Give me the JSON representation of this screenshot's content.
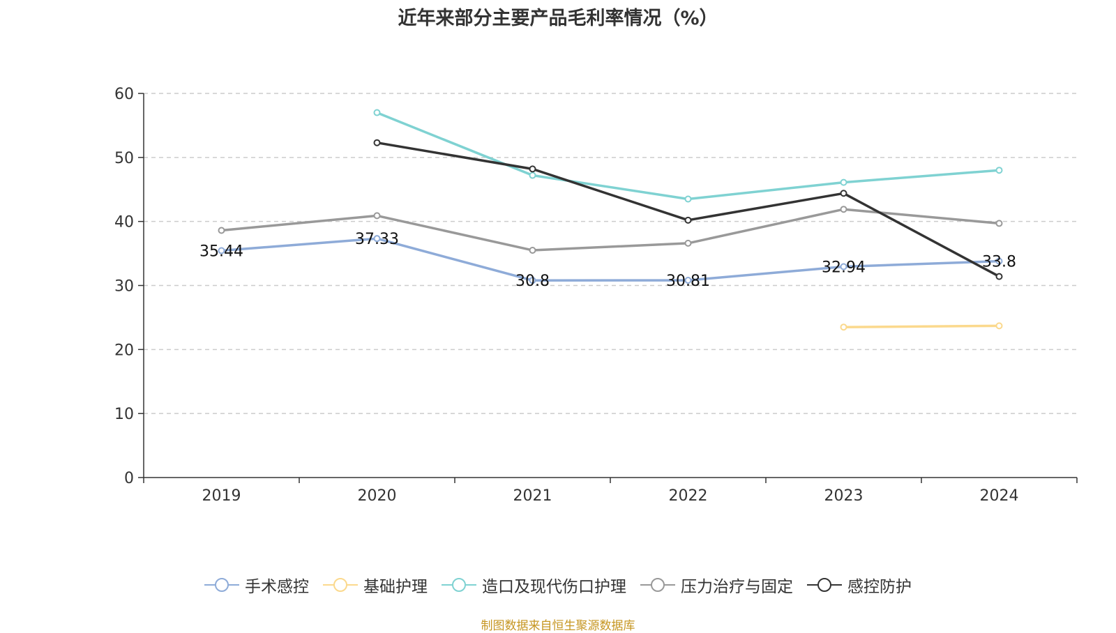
{
  "chart_data": {
    "type": "line",
    "title": "近年来部分主要产品毛利率情况（%）",
    "categories": [
      "2019",
      "2020",
      "2021",
      "2022",
      "2023",
      "2024"
    ],
    "ylim": [
      0,
      60
    ],
    "yticks": [
      0,
      10,
      20,
      30,
      40,
      50,
      60
    ],
    "grid": true,
    "legend_position": "bottom",
    "series": [
      {
        "name": "手术感控",
        "color": "#8eabd8",
        "values": [
          35.44,
          37.33,
          30.8,
          30.81,
          32.94,
          33.8
        ],
        "labels": [
          "35.44",
          "37.33",
          "30.8",
          "30.81",
          "32.94",
          "33.8"
        ]
      },
      {
        "name": "基础护理",
        "color": "#fbd98d",
        "values": [
          null,
          null,
          null,
          null,
          23.5,
          23.7
        ]
      },
      {
        "name": "造口及现代伤口护理",
        "color": "#7fd2d2",
        "values": [
          null,
          57.0,
          47.2,
          43.5,
          46.1,
          48.0
        ]
      },
      {
        "name": "压力治疗与固定",
        "color": "#999999",
        "values": [
          38.6,
          40.9,
          35.5,
          36.6,
          41.9,
          39.7
        ]
      },
      {
        "name": "感控防护",
        "color": "#333333",
        "values": [
          null,
          52.3,
          48.2,
          40.2,
          44.4,
          31.4
        ]
      }
    ]
  },
  "source_note": "制图数据来自恒生聚源数据库"
}
